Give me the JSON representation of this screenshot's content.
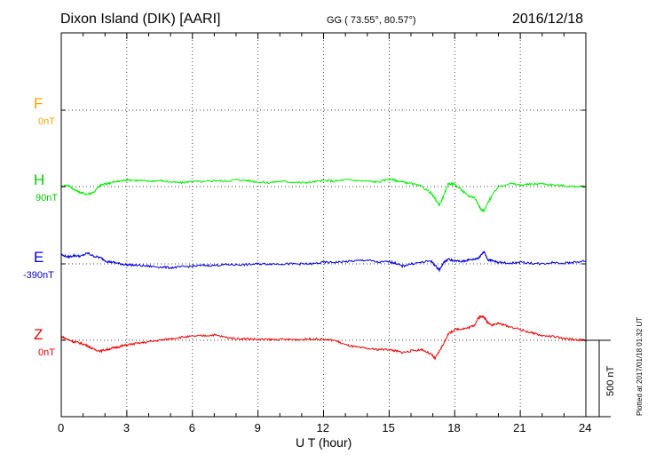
{
  "header": {
    "station": "Dixon Island (DIK)  [AARI]",
    "coords": "GG ( 73.55°,  80.57°)",
    "date": "2016/12/18"
  },
  "plotted_note": "Plotted at 2017/01/18 01:32 UT",
  "chart_data": {
    "type": "line",
    "xlabel": "U T (hour)",
    "xlim": [
      0,
      24
    ],
    "xticks": [
      "0",
      "3",
      "6",
      "9",
      "12",
      "15",
      "18",
      "21",
      "24"
    ],
    "grid": true,
    "scale_bar": "500 nT",
    "components": [
      {
        "name": "F",
        "baseline": "0nT",
        "color": "#f5a400",
        "values": []
      },
      {
        "name": "H",
        "baseline": "90nT",
        "color": "#00ee00",
        "x": [
          0,
          0.3,
          0.6,
          0.9,
          1.2,
          1.5,
          1.8,
          2.1,
          2.4,
          2.7,
          3,
          3.5,
          4,
          4.5,
          5,
          5.5,
          6,
          6.5,
          7,
          7.5,
          8,
          8.5,
          9,
          9.5,
          10,
          10.5,
          11,
          11.5,
          12,
          12.5,
          13,
          13.5,
          14,
          14.5,
          15,
          15.3,
          15.6,
          16,
          16.5,
          16.9,
          17.1,
          17.3,
          17.5,
          17.7,
          18,
          18.3,
          18.6,
          18.9,
          19.1,
          19.2,
          19.35,
          19.5,
          19.7,
          20,
          20.5,
          21,
          21.5,
          22,
          22.5,
          23,
          23.5,
          24
        ],
        "values": [
          0,
          10,
          -20,
          -40,
          -50,
          -35,
          10,
          20,
          30,
          35,
          45,
          40,
          35,
          40,
          30,
          25,
          35,
          30,
          40,
          35,
          45,
          40,
          30,
          25,
          35,
          30,
          25,
          30,
          40,
          35,
          45,
          40,
          35,
          30,
          50,
          40,
          30,
          20,
          0,
          -40,
          -80,
          -120,
          -60,
          20,
          15,
          -20,
          -60,
          -70,
          -120,
          -150,
          -160,
          -110,
          -60,
          0,
          20,
          10,
          15,
          20,
          10,
          5,
          0,
          0
        ]
      },
      {
        "name": "E",
        "baseline": "-390nT",
        "color": "#0000dd",
        "x": [
          0,
          0.3,
          0.6,
          0.9,
          1.2,
          1.5,
          1.8,
          2.1,
          2.4,
          2.7,
          3,
          3.5,
          4,
          4.5,
          5,
          5.5,
          6,
          6.5,
          7,
          7.5,
          8,
          8.5,
          9,
          9.5,
          10,
          10.5,
          11,
          11.5,
          12,
          12.5,
          13,
          13.5,
          14,
          14.5,
          15,
          15.3,
          15.6,
          16,
          16.5,
          16.9,
          17.1,
          17.3,
          17.5,
          17.7,
          18,
          18.3,
          18.6,
          18.9,
          19.1,
          19.2,
          19.35,
          19.5,
          19.7,
          20,
          20.5,
          21,
          21.5,
          22,
          22.5,
          23,
          23.5,
          24
        ],
        "values": [
          60,
          45,
          55,
          50,
          70,
          50,
          40,
          15,
          10,
          0,
          -5,
          -10,
          -15,
          -20,
          -25,
          -20,
          -15,
          -10,
          -10,
          -5,
          -5,
          -5,
          0,
          0,
          0,
          0,
          0,
          0,
          10,
          10,
          15,
          20,
          25,
          10,
          15,
          5,
          -15,
          0,
          10,
          20,
          -10,
          -40,
          10,
          30,
          20,
          15,
          25,
          30,
          40,
          60,
          80,
          30,
          20,
          10,
          5,
          10,
          5,
          0,
          10,
          5,
          10,
          20
        ]
      },
      {
        "name": "Z",
        "baseline": "0nT",
        "color": "#ee0000",
        "x": [
          0,
          0.3,
          0.6,
          0.9,
          1.2,
          1.5,
          1.8,
          2.1,
          2.4,
          2.7,
          3,
          3.5,
          4,
          4.5,
          5,
          5.5,
          6,
          6.5,
          7,
          7.5,
          8,
          8.5,
          9,
          9.5,
          10,
          10.5,
          11,
          11.5,
          12,
          12.5,
          13,
          13.5,
          14,
          14.5,
          15,
          15.3,
          15.6,
          16,
          16.5,
          16.9,
          17.1,
          17.3,
          17.5,
          17.7,
          18,
          18.3,
          18.6,
          18.9,
          19.1,
          19.2,
          19.35,
          19.5,
          19.7,
          20,
          20.5,
          21,
          21.5,
          22,
          22.5,
          23,
          23.5,
          24
        ],
        "values": [
          25,
          5,
          -10,
          -20,
          -35,
          -60,
          -70,
          -60,
          -50,
          -40,
          -30,
          -20,
          -10,
          0,
          10,
          20,
          25,
          30,
          35,
          20,
          10,
          10,
          5,
          5,
          5,
          5,
          5,
          10,
          5,
          0,
          -30,
          -45,
          -55,
          -60,
          -60,
          -70,
          -80,
          -70,
          -60,
          -90,
          -120,
          -70,
          -20,
          40,
          70,
          75,
          80,
          100,
          150,
          160,
          150,
          120,
          100,
          110,
          90,
          70,
          50,
          30,
          25,
          10,
          5,
          0
        ]
      }
    ]
  }
}
